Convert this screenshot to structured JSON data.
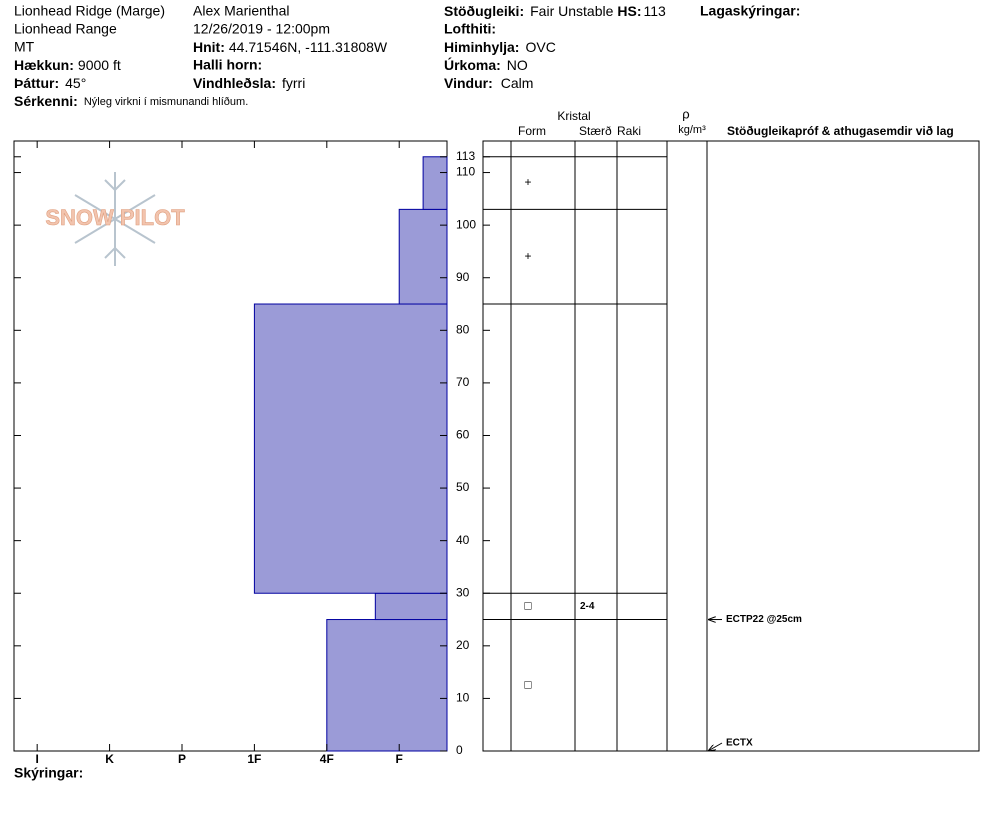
{
  "header": {
    "location": "Lionhead Ridge (Marge)",
    "range": "Lionhead Range",
    "state": "MT",
    "elevation_label": "Hækkun:",
    "elevation": "9000 ft",
    "aspect_label": "Þáttur:",
    "aspect": "45°",
    "comments_label": "Sérkenni:",
    "comments": "Nýleg virkni í mismunandi hlíðum.",
    "observer": "Alex Marienthal",
    "datetime": "12/26/2019 - 12:00pm",
    "coords_label": "Hnit:",
    "coords": "44.71546N, -111.31808W",
    "slope_label": "Halli horn:",
    "wind_loading_label": "Vindhleðsla:",
    "wind_loading": "fyrri",
    "stability_label": "Stöðugleiki:",
    "stability": "Fair Unstable",
    "hs_label": "HS:",
    "hs": 113,
    "air_temp_label": "Lofthiti:",
    "sky_label": "Himinhylja:",
    "sky": "OVC",
    "precip_label": "Úrkoma:",
    "precip": "NO",
    "wind_label": "Vindur:",
    "wind": "Calm",
    "layer_notes_label": "Lagaskýringar:"
  },
  "logo": "SNOW PILOT",
  "footer_label": "Skýringar:",
  "chart_data": {
    "type": "snow_profile",
    "color": "#9b9bd7",
    "ylim": [
      0,
      116
    ],
    "yticks": [
      0,
      10,
      20,
      30,
      40,
      50,
      60,
      70,
      80,
      90,
      100,
      110,
      113
    ],
    "xlim": [
      6.32,
      0.34
    ],
    "xticks": [
      {
        "value": 6,
        "label": "I"
      },
      {
        "value": 5,
        "label": "K"
      },
      {
        "value": 4,
        "label": "P"
      },
      {
        "value": 3,
        "label": "1F"
      },
      {
        "value": 2,
        "label": "4F"
      },
      {
        "value": 1,
        "label": "F"
      }
    ],
    "layers": {
      "bottom": [
        0,
        25,
        30,
        85,
        103
      ],
      "top": [
        25,
        30,
        85,
        103,
        113
      ],
      "hardness": [
        2,
        1.33,
        3,
        1,
        0.67
      ],
      "form": [
        "□",
        "□",
        null,
        "+",
        "+"
      ],
      "size": [
        null,
        "2-4",
        null,
        null,
        null
      ]
    },
    "table_headers": {
      "crystal": "Kristal",
      "form": "Form",
      "size": "Stærð",
      "moisture": "Raki",
      "density": "ρ",
      "density_unit": "kg/m³",
      "tests": "Stöðugleikapróf & athugasemdir við lag"
    },
    "tests": {
      "depth": [
        25,
        0
      ],
      "label": [
        "ECTP22 @25cm",
        "ECTX"
      ]
    }
  }
}
